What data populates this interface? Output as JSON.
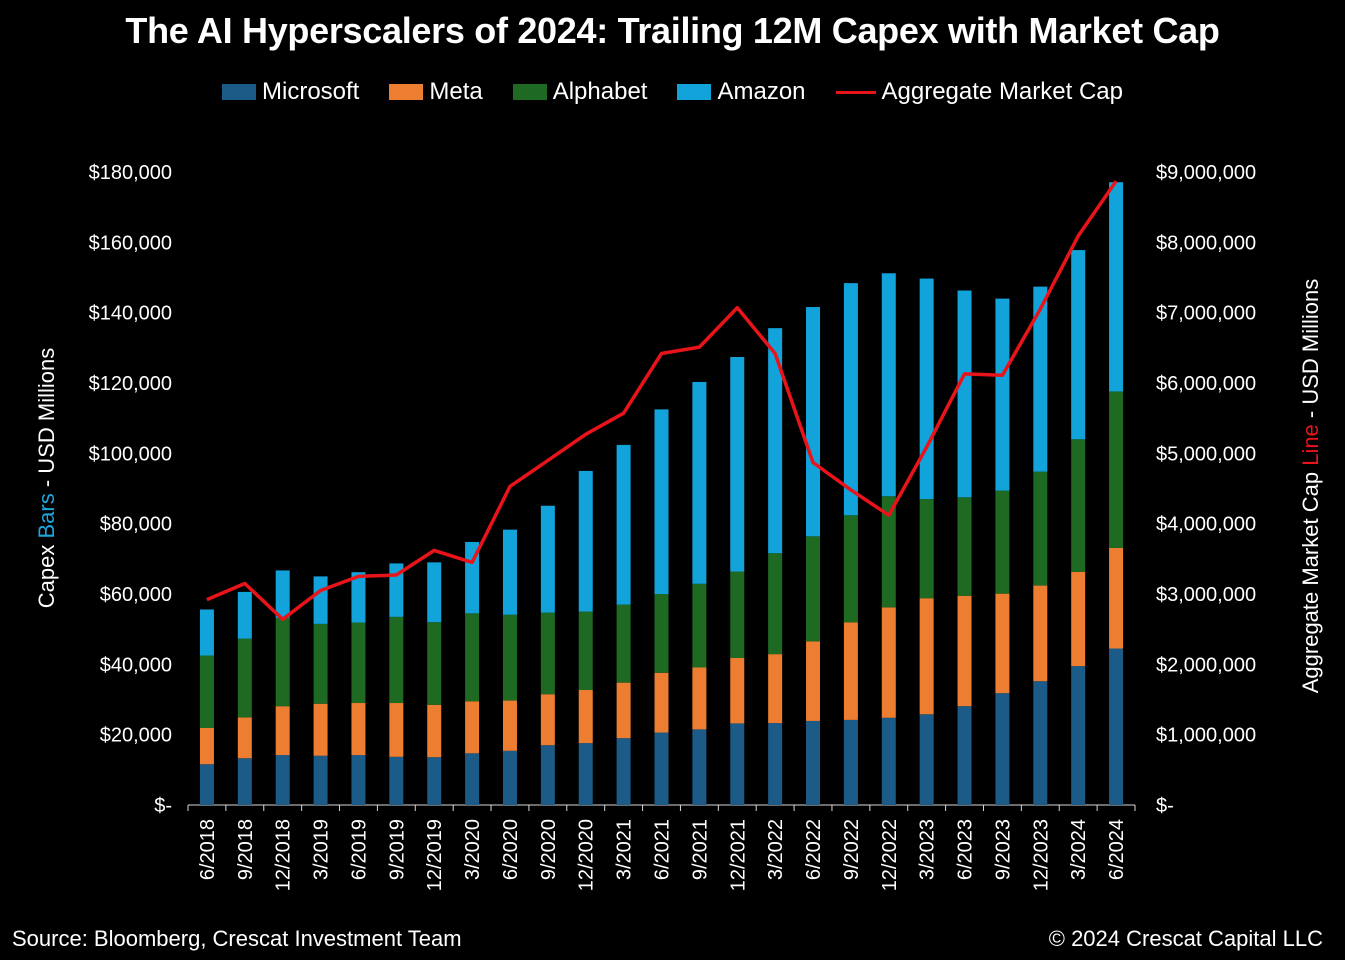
{
  "title": "The AI Hyperscalers of 2024: Trailing 12M Capex with Market Cap",
  "footer": {
    "source": "Source: Bloomberg, Crescat Investment Team",
    "copyright": "© 2024 Crescat Capital LLC"
  },
  "chart_data": {
    "type": "bar",
    "stacked": true,
    "title": "The AI Hyperscalers of 2024: Trailing 12M Capex with Market Cap",
    "categories": [
      "6/2018",
      "9/2018",
      "12/2018",
      "3/2019",
      "6/2019",
      "9/2019",
      "12/2019",
      "3/2020",
      "6/2020",
      "9/2020",
      "12/2020",
      "3/2021",
      "6/2021",
      "9/2021",
      "12/2021",
      "3/2022",
      "6/2022",
      "9/2022",
      "12/2022",
      "3/2023",
      "6/2023",
      "9/2023",
      "12/2023",
      "3/2024",
      "6/2024"
    ],
    "y_left": {
      "label_parts": [
        "Capex ",
        "Bars",
        " - USD Millions"
      ],
      "label_colors": [
        "#ffffff",
        "#1fa5dd",
        "#ffffff"
      ],
      "ylim": [
        0,
        180000
      ],
      "ticks": [
        0,
        20000,
        40000,
        60000,
        80000,
        100000,
        120000,
        140000,
        160000,
        180000
      ],
      "tick_labels": [
        "$-",
        "$20,000",
        "$40,000",
        "$60,000",
        "$80,000",
        "$100,000",
        "$120,000",
        "$140,000",
        "$160,000",
        "$180,000"
      ]
    },
    "y_right": {
      "label_parts": [
        "Aggregate Market Cap ",
        "Line",
        " - USD Millions"
      ],
      "label_colors": [
        "#ffffff",
        "#e8141a",
        "#ffffff"
      ],
      "ylim": [
        0,
        9000000
      ],
      "ticks": [
        0,
        1000000,
        2000000,
        3000000,
        4000000,
        5000000,
        6000000,
        7000000,
        8000000,
        9000000
      ],
      "tick_labels": [
        "$-",
        "$1,000,000",
        "$2,000,000",
        "$3,000,000",
        "$4,000,000",
        "$5,000,000",
        "$6,000,000",
        "$7,000,000",
        "$8,000,000",
        "$9,000,000"
      ]
    },
    "series": [
      {
        "name": "Microsoft",
        "color": "#1c5b87",
        "values": [
          11600,
          13300,
          14200,
          14000,
          14200,
          13700,
          13600,
          14700,
          15400,
          17000,
          17600,
          19000,
          20600,
          21500,
          23200,
          23300,
          23900,
          24200,
          24800,
          25800,
          28100,
          31800,
          35200,
          39500,
          44500
        ]
      },
      {
        "name": "Meta",
        "color": "#ed7d31",
        "values": [
          10300,
          11600,
          13900,
          14800,
          14800,
          15300,
          14900,
          14800,
          14300,
          14500,
          15100,
          15800,
          17000,
          17600,
          18600,
          19600,
          22600,
          27700,
          31400,
          33000,
          31400,
          28300,
          27200,
          26800,
          28600
        ]
      },
      {
        "name": "Alphabet",
        "color": "#1f6a23",
        "values": [
          20600,
          22400,
          25100,
          22700,
          22900,
          24500,
          23500,
          25000,
          24400,
          23200,
          22300,
          22200,
          22400,
          23800,
          24600,
          28700,
          29900,
          30500,
          31600,
          28200,
          28000,
          29300,
          32400,
          37700,
          44500
        ]
      },
      {
        "name": "Amazon",
        "color": "#13a3db",
        "values": [
          13100,
          13300,
          13500,
          13500,
          14300,
          15200,
          17000,
          20300,
          24200,
          30400,
          40000,
          45400,
          52500,
          57400,
          61000,
          64000,
          65200,
          66000,
          63400,
          62700,
          58800,
          54600,
          52600,
          53800,
          59500
        ]
      }
    ],
    "line": {
      "name": "Aggregate Market Cap",
      "color": "#e8141a",
      "axis": "right",
      "values": [
        2920000,
        3150000,
        2640000,
        3050000,
        3250000,
        3270000,
        3620000,
        3450000,
        4530000,
        4900000,
        5270000,
        5570000,
        6420000,
        6510000,
        7070000,
        6420000,
        4870000,
        4480000,
        4120000,
        5090000,
        6130000,
        6110000,
        7050000,
        8090000,
        8870000
      ]
    },
    "legend": "top-center"
  }
}
